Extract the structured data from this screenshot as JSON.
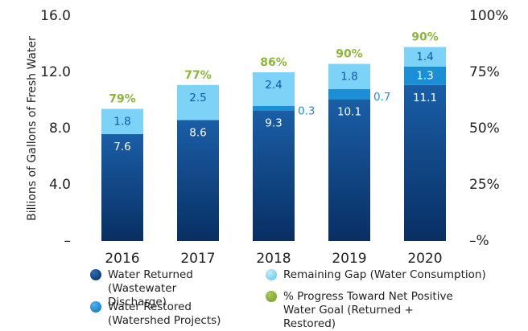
{
  "chart_data": {
    "type": "bar",
    "stacked": true,
    "y_label": "Billions of Gallons of Fresh Water",
    "categories": [
      "2016",
      "2017",
      "2018",
      "2019",
      "2020"
    ],
    "series": [
      {
        "name": "Water Returned (Wastewater Discharge)",
        "color": "#0b3f7e",
        "values": [
          7.6,
          8.6,
          9.3,
          10.1,
          11.1
        ]
      },
      {
        "name": "Water Restored (Watershed Projects)",
        "color": "#1a8fd6",
        "values": [
          null,
          null,
          0.3,
          0.7,
          1.3
        ]
      },
      {
        "name": "Remaining Gap (Water Consumption)",
        "color": "#7dd3f7",
        "values": [
          1.8,
          2.5,
          2.4,
          1.8,
          1.4
        ]
      },
      {
        "name": "% Progress Toward Net Positive Water Goal (Returned + Restored)",
        "color": "#8db53c",
        "axis": "y2",
        "values": [
          79,
          77,
          86,
          90,
          90
        ],
        "value_labels": [
          "79%",
          "77%",
          "86%",
          "90%",
          "90%"
        ]
      }
    ],
    "ylim": [
      0,
      16
    ],
    "yticks": [
      {
        "value": 0,
        "label": "–"
      },
      {
        "value": 4,
        "label": "4.0"
      },
      {
        "value": 8,
        "label": "8.0"
      },
      {
        "value": 12,
        "label": "12.0"
      },
      {
        "value": 16,
        "label": "16.0"
      }
    ],
    "y2lim": [
      0,
      100
    ],
    "y2ticks": [
      {
        "value": 0,
        "label": "–%"
      },
      {
        "value": 25,
        "label": "25%"
      },
      {
        "value": 50,
        "label": "50%"
      },
      {
        "value": 75,
        "label": "75%"
      },
      {
        "value": 100,
        "label": "100%"
      }
    ]
  }
}
